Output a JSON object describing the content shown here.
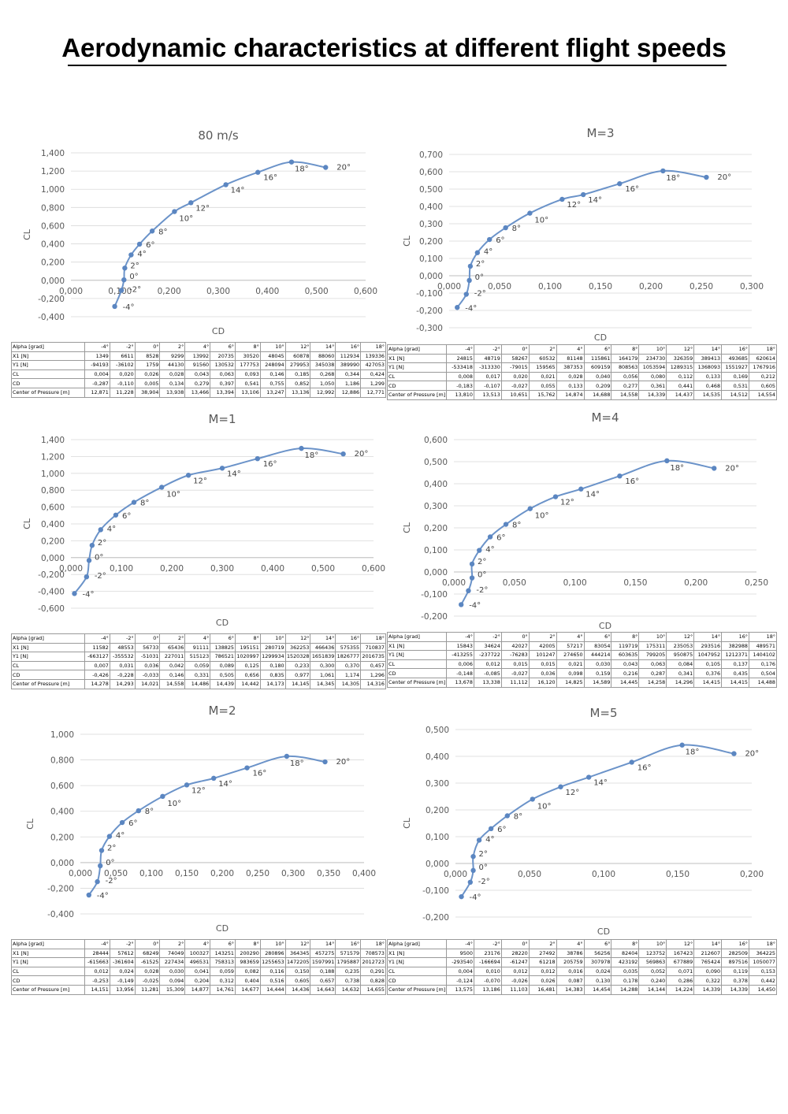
{
  "page": {
    "title": "Aerodynamic characteristics at different flight speeds"
  },
  "table_row_labels": [
    "Alpha [grad]",
    "X1 [N]",
    "Y1 [N]",
    "CL",
    "CD",
    "Center of Pressure [m]"
  ],
  "point_labels": [
    "-4°",
    "-2°",
    "0°",
    "2°",
    "4°",
    "6°",
    "8°",
    "10°",
    "12°",
    "14°",
    "16°",
    "18°",
    "20°"
  ],
  "chart_data": [
    {
      "id": "c80",
      "type": "scatter-line",
      "title": "80 m/s",
      "xlabel": "CD",
      "ylabel": "CL",
      "xlim": [
        -0.1,
        0.6
      ],
      "ylim": [
        -0.4,
        1.4
      ],
      "xticks": [
        "0,000",
        "0,100",
        "0,200",
        "0,300",
        "0,400",
        "0,500",
        "0,600"
      ],
      "yticks": [
        "-0,400",
        "-0,200",
        "0,000",
        "0,200",
        "0,400",
        "0,600",
        "0,800",
        "1,000",
        "1,200",
        "1,400"
      ],
      "x": [
        0.004,
        0.02,
        0.026,
        0.028,
        0.043,
        0.063,
        0.093,
        0.146,
        0.185,
        0.268,
        0.344,
        0.424,
        0.505
      ],
      "y": [
        -0.287,
        -0.11,
        0.005,
        0.134,
        0.279,
        0.397,
        0.541,
        0.755,
        0.852,
        1.05,
        1.186,
        1.299,
        1.24
      ],
      "table": {
        "alpha": [
          "-4°",
          "-2°",
          "0°",
          "2°",
          "4°",
          "6°",
          "8°",
          "10°",
          "12°",
          "14°",
          "16°",
          "18°"
        ],
        "X1": [
          "1349",
          "6611",
          "8528",
          "9299",
          "13992",
          "20735",
          "30520",
          "48045",
          "60878",
          "88060",
          "112934",
          "139336"
        ],
        "Y1": [
          "-94193",
          "-36102",
          "1759",
          "44130",
          "91560",
          "130532",
          "177753",
          "248094",
          "279953",
          "345038",
          "389990",
          "427053"
        ],
        "CL": [
          "0,004",
          "0,020",
          "0,026",
          "0,028",
          "0,043",
          "0,063",
          "0,093",
          "0,146",
          "0,185",
          "0,268",
          "0,344",
          "0,424"
        ],
        "CD": [
          "-0,287",
          "-0,110",
          "0,005",
          "0,134",
          "0,279",
          "0,397",
          "0,541",
          "0,755",
          "0,852",
          "1,050",
          "1,186",
          "1,299"
        ],
        "CP": [
          "12,871",
          "11,228",
          "38,904",
          "13,938",
          "13,466",
          "13,394",
          "13,106",
          "13,247",
          "13,136",
          "12,992",
          "12,886",
          "12,771"
        ]
      }
    },
    {
      "id": "cm3",
      "type": "scatter-line",
      "title": "M=3",
      "xlabel": "CD",
      "ylabel": "CL",
      "xlim": [
        0.0,
        0.3
      ],
      "ylim": [
        -0.3,
        0.7
      ],
      "xticks": [
        "0,000",
        "0,050",
        "0,100",
        "0,150",
        "0,200",
        "0,250",
        "0,300"
      ],
      "yticks": [
        "-0,300",
        "-0,200",
        "-0,100",
        "0,000",
        "0,100",
        "0,200",
        "0,300",
        "0,400",
        "0,500",
        "0,600",
        "0,700"
      ],
      "x": [
        0.008,
        0.017,
        0.02,
        0.021,
        0.028,
        0.04,
        0.056,
        0.08,
        0.112,
        0.133,
        0.169,
        0.212,
        0.255
      ],
      "y": [
        -0.183,
        -0.107,
        -0.027,
        0.055,
        0.133,
        0.209,
        0.277,
        0.361,
        0.441,
        0.468,
        0.531,
        0.605,
        0.568
      ],
      "table": {
        "alpha": [
          "-4°",
          "-2°",
          "0°",
          "2°",
          "4°",
          "6°",
          "8°",
          "10°",
          "12°",
          "14°",
          "16°",
          "18°"
        ],
        "X1": [
          "24815",
          "48719",
          "58267",
          "60532",
          "81148",
          "115861",
          "164179",
          "234730",
          "326359",
          "389413",
          "493685",
          "620614"
        ],
        "Y1": [
          "-533418",
          "-313330",
          "-79015",
          "159565",
          "387353",
          "609159",
          "808563",
          "1053594",
          "1289315",
          "1368093",
          "1551927",
          "1767916"
        ],
        "CL": [
          "0,008",
          "0,017",
          "0,020",
          "0,021",
          "0,028",
          "0,040",
          "0,056",
          "0,080",
          "0,112",
          "0,133",
          "0,169",
          "0,212"
        ],
        "CD": [
          "-0,183",
          "-0,107",
          "-0,027",
          "0,055",
          "0,133",
          "0,209",
          "0,277",
          "0,361",
          "0,441",
          "0,468",
          "0,531",
          "0,605"
        ],
        "CP": [
          "13,810",
          "13,513",
          "10,651",
          "15,762",
          "14,874",
          "14,688",
          "14,558",
          "14,339",
          "14,437",
          "14,535",
          "14,512",
          "14,554"
        ]
      }
    },
    {
      "id": "cm1",
      "type": "scatter-line",
      "title": "M=1",
      "xlabel": "CD",
      "ylabel": "CL",
      "xlim": [
        0.0,
        0.6
      ],
      "ylim": [
        -0.6,
        1.4
      ],
      "xticks": [
        "0,000",
        "0,100",
        "0,200",
        "0,300",
        "0,400",
        "0,500",
        "0,600"
      ],
      "yticks": [
        "-0,600",
        "-0,400",
        "-0,200",
        "0,000",
        "0,200",
        "0,400",
        "0,600",
        "0,800",
        "1,000",
        "1,200",
        "1,400"
      ],
      "x": [
        0.007,
        0.031,
        0.036,
        0.042,
        0.059,
        0.089,
        0.125,
        0.18,
        0.233,
        0.3,
        0.37,
        0.457,
        0.54
      ],
      "y": [
        -0.426,
        -0.228,
        -0.033,
        0.146,
        0.331,
        0.505,
        0.656,
        0.835,
        0.977,
        1.061,
        1.174,
        1.296,
        1.23
      ],
      "table": {
        "alpha": [
          "-4°",
          "-2°",
          "0°",
          "2°",
          "4°",
          "6°",
          "8°",
          "10°",
          "12°",
          "14°",
          "16°",
          "18°"
        ],
        "X1": [
          "11582",
          "48553",
          "56733",
          "65436",
          "91111",
          "138825",
          "195151",
          "280719",
          "362253",
          "466436",
          "575355",
          "710837"
        ],
        "Y1": [
          "-663127",
          "-355532",
          "-51031",
          "227011",
          "515123",
          "786521",
          "1020997",
          "1299934",
          "1520328",
          "1651839",
          "1826777",
          "2016735"
        ],
        "CL": [
          "0,007",
          "0,031",
          "0,036",
          "0,042",
          "0,059",
          "0,089",
          "0,125",
          "0,180",
          "0,233",
          "0,300",
          "0,370",
          "0,457"
        ],
        "CD": [
          "-0,426",
          "-0,228",
          "-0,033",
          "0,146",
          "0,331",
          "0,505",
          "0,656",
          "0,835",
          "0,977",
          "1,061",
          "1,174",
          "1,296"
        ],
        "CP": [
          "14,278",
          "14,293",
          "14,021",
          "14,558",
          "14,486",
          "14,439",
          "14,442",
          "14,173",
          "14,145",
          "14,345",
          "14,305",
          "14,316"
        ]
      }
    },
    {
      "id": "cm4",
      "type": "scatter-line",
      "title": "M=4",
      "xlabel": "CD",
      "ylabel": "CL",
      "xlim": [
        0.0,
        0.25
      ],
      "ylim": [
        -0.2,
        0.6
      ],
      "xticks": [
        "0,000",
        "0,050",
        "0,100",
        "0,150",
        "0,200",
        "0,250"
      ],
      "yticks": [
        "-0,200",
        "-0,100",
        "0,000",
        "0,100",
        "0,200",
        "0,300",
        "0,400",
        "0,500",
        "0,600"
      ],
      "x": [
        0.006,
        0.012,
        0.015,
        0.015,
        0.021,
        0.03,
        0.043,
        0.063,
        0.084,
        0.105,
        0.137,
        0.176,
        0.215
      ],
      "y": [
        -0.148,
        -0.085,
        -0.027,
        0.036,
        0.098,
        0.159,
        0.216,
        0.287,
        0.341,
        0.376,
        0.435,
        0.504,
        0.47
      ],
      "table": {
        "alpha": [
          "-4°",
          "-2°",
          "0°",
          "2°",
          "4°",
          "6°",
          "8°",
          "10°",
          "12°",
          "14°",
          "16°",
          "18°"
        ],
        "X1": [
          "15843",
          "34624",
          "42027",
          "42005",
          "57217",
          "83054",
          "119719",
          "175311",
          "235053",
          "293516",
          "382988",
          "489571"
        ],
        "Y1": [
          "-413255",
          "-237722",
          "-76283",
          "101247",
          "274650",
          "444214",
          "603635",
          "799205",
          "950875",
          "1047952",
          "1212371",
          "1404102"
        ],
        "CL": [
          "0,006",
          "0,012",
          "0,015",
          "0,015",
          "0,021",
          "0,030",
          "0,043",
          "0,063",
          "0,084",
          "0,105",
          "0,137",
          "0,176"
        ],
        "CD": [
          "-0,148",
          "-0,085",
          "-0,027",
          "0,036",
          "0,098",
          "0,159",
          "0,216",
          "0,287",
          "0,341",
          "0,376",
          "0,435",
          "0,504"
        ],
        "CP": [
          "13,678",
          "13,338",
          "11,112",
          "16,120",
          "14,825",
          "14,589",
          "14,445",
          "14,258",
          "14,296",
          "14,415",
          "14,415",
          "14,488"
        ]
      }
    },
    {
      "id": "cm2",
      "type": "scatter-line",
      "title": "M=2",
      "xlabel": "CD",
      "ylabel": "CL",
      "xlim": [
        0.0,
        0.4
      ],
      "ylim": [
        -0.4,
        1.0
      ],
      "xticks": [
        "0,000",
        "0,050",
        "0,100",
        "0,150",
        "0,200",
        "0,250",
        "0,300",
        "0,350",
        "0,400"
      ],
      "yticks": [
        "-0,400",
        "-0,200",
        "0,000",
        "0,200",
        "0,400",
        "0,600",
        "0,800",
        "1,000"
      ],
      "x": [
        0.012,
        0.024,
        0.028,
        0.03,
        0.041,
        0.059,
        0.082,
        0.116,
        0.15,
        0.188,
        0.235,
        0.291,
        0.345
      ],
      "y": [
        -0.253,
        -0.149,
        -0.025,
        0.094,
        0.204,
        0.312,
        0.404,
        0.516,
        0.605,
        0.657,
        0.738,
        0.828,
        0.785
      ],
      "table": {
        "alpha": [
          "-4°",
          "-2°",
          "0°",
          "2°",
          "4°",
          "6°",
          "8°",
          "10°",
          "12°",
          "14°",
          "16°",
          "18°"
        ],
        "X1": [
          "28444",
          "57612",
          "68249",
          "74049",
          "100327",
          "143251",
          "200290",
          "280896",
          "364345",
          "457275",
          "571579",
          "708573"
        ],
        "Y1": [
          "-615663",
          "-361604",
          "-61525",
          "227434",
          "496531",
          "758313",
          "983659",
          "1255653",
          "1472205",
          "1597991",
          "1795887",
          "2012723"
        ],
        "CL": [
          "0,012",
          "0,024",
          "0,028",
          "0,030",
          "0,041",
          "0,059",
          "0,082",
          "0,116",
          "0,150",
          "0,188",
          "0,235",
          "0,291"
        ],
        "CD": [
          "-0,253",
          "-0,149",
          "-0,025",
          "0,094",
          "0,204",
          "0,312",
          "0,404",
          "0,516",
          "0,605",
          "0,657",
          "0,738",
          "0,828"
        ],
        "CP": [
          "14,151",
          "13,956",
          "11,281",
          "15,309",
          "14,877",
          "14,761",
          "14,677",
          "14,444",
          "14,436",
          "14,643",
          "14,632",
          "14,655"
        ]
      }
    },
    {
      "id": "cm5",
      "type": "scatter-line",
      "title": "M=5",
      "xlabel": "CD",
      "ylabel": "CL",
      "xlim": [
        0.0,
        0.2
      ],
      "ylim": [
        -0.2,
        0.5
      ],
      "xticks": [
        "0,000",
        "0,050",
        "0,100",
        "0,150",
        "0,200"
      ],
      "yticks": [
        "-0,200",
        "-0,100",
        "0,000",
        "0,100",
        "0,200",
        "0,300",
        "0,400",
        "0,500"
      ],
      "x": [
        0.004,
        0.01,
        0.012,
        0.012,
        0.016,
        0.024,
        0.035,
        0.052,
        0.071,
        0.09,
        0.119,
        0.153,
        0.188
      ],
      "y": [
        -0.124,
        -0.07,
        -0.026,
        0.026,
        0.087,
        0.13,
        0.178,
        0.24,
        0.286,
        0.322,
        0.378,
        0.442,
        0.41
      ],
      "table": {
        "alpha": [
          "-4°",
          "-2°",
          "0°",
          "2°",
          "4°",
          "6°",
          "8°",
          "10°",
          "12°",
          "14°",
          "16°",
          "18°"
        ],
        "X1": [
          "9500",
          "23176",
          "28220",
          "27492",
          "38786",
          "56256",
          "82404",
          "123752",
          "167423",
          "212607",
          "282509",
          "364225"
        ],
        "Y1": [
          "-293540",
          "-166694",
          "-61247",
          "61218",
          "205759",
          "307978",
          "423192",
          "569863",
          "677889",
          "765424",
          "897516",
          "1050077"
        ],
        "CL": [
          "0,004",
          "0,010",
          "0,012",
          "0,012",
          "0,016",
          "0,024",
          "0,035",
          "0,052",
          "0,071",
          "0,090",
          "0,119",
          "0,153"
        ],
        "CD": [
          "-0,124",
          "-0,070",
          "-0,026",
          "0,026",
          "0,087",
          "0,130",
          "0,178",
          "0,240",
          "0,286",
          "0,322",
          "0,378",
          "0,442"
        ],
        "CP": [
          "13,575",
          "13,186",
          "11,103",
          "16,481",
          "14,383",
          "14,454",
          "14,288",
          "14,144",
          "14,224",
          "14,339",
          "14,339",
          "14,450"
        ]
      }
    }
  ]
}
